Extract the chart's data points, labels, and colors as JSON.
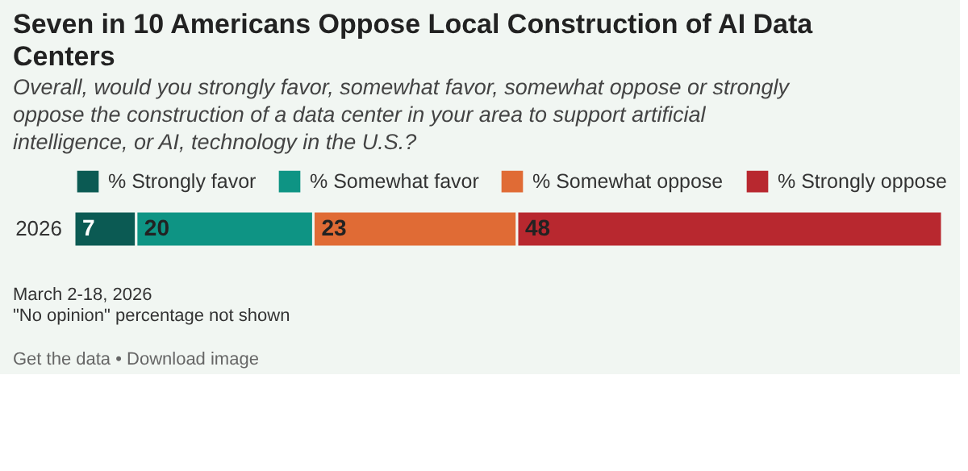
{
  "chart_data": {
    "type": "bar",
    "orientation": "horizontal",
    "stacked": true,
    "title": "Seven in 10 Americans Oppose Local Construction of AI Data Centers",
    "subtitle": "Overall, would you strongly favor, somewhat favor, somewhat oppose or strongly oppose the construction of a data center in your area to support artificial intelligence, or AI, technology in the U.S.?",
    "categories": [
      "2026"
    ],
    "series": [
      {
        "name": "% Strongly favor",
        "color": "#0b5a53",
        "values": [
          7
        ]
      },
      {
        "name": "% Somewhat favor",
        "color": "#0e9484",
        "values": [
          20
        ]
      },
      {
        "name": "% Somewhat oppose",
        "color": "#e06b35",
        "values": [
          23
        ]
      },
      {
        "name": "% Strongly oppose",
        "color": "#b8282f",
        "values": [
          48
        ]
      }
    ],
    "xlim": [
      0,
      98
    ],
    "tick_labels": "y",
    "data_labels": true,
    "legend": "top",
    "annotations": [
      "March 2-18, 2026",
      "\"No opinion\" percentage not shown",
      "Get the data • Download image"
    ]
  }
}
